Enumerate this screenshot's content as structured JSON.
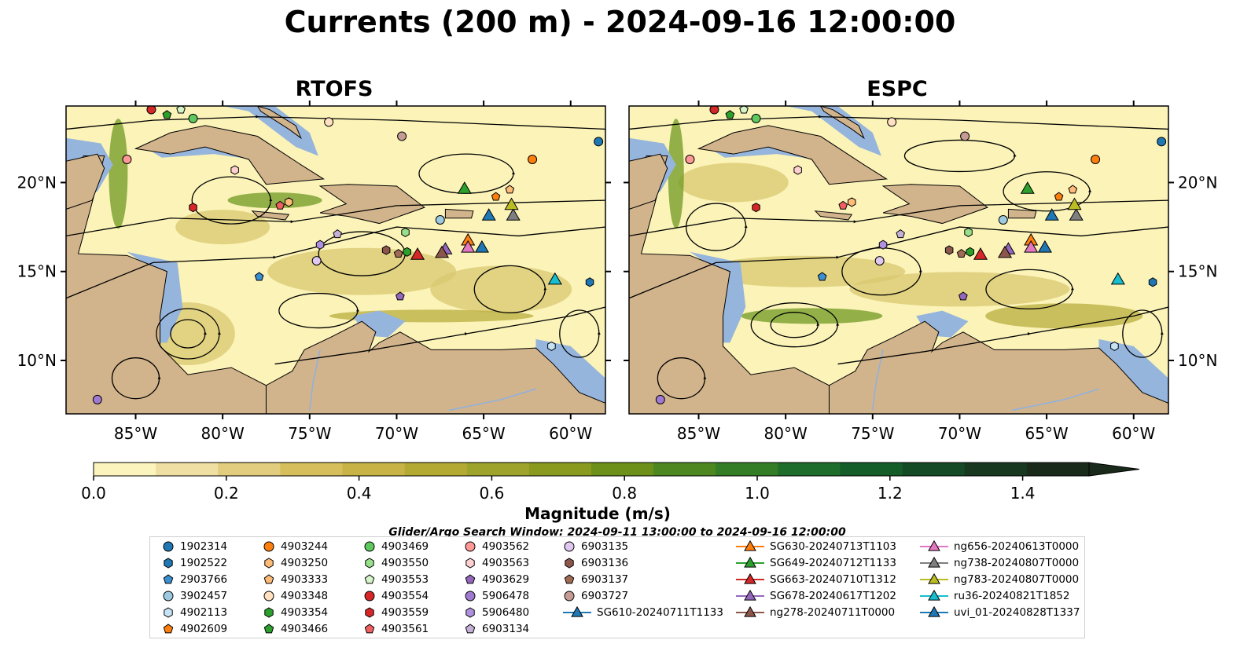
{
  "title": "Currents (200 m) - 2024-09-16 12:00:00",
  "panels": [
    {
      "title": "RTOFS"
    },
    {
      "title": "ESPC"
    }
  ],
  "axes": {
    "x_ticks": [
      "85°W",
      "80°W",
      "75°W",
      "70°W",
      "65°W",
      "60°W"
    ],
    "x_values": [
      -85,
      -80,
      -75,
      -70,
      -65,
      -60
    ],
    "y_ticks": [
      "20°N",
      "15°N",
      "10°N"
    ],
    "y_values": [
      20,
      15,
      10
    ],
    "lon_range": [
      -89,
      -58
    ],
    "lat_range": [
      7,
      24.3
    ]
  },
  "colorbar": {
    "label": "Magnitude (m/s)",
    "tick_labels": [
      "0.0",
      "0.2",
      "0.4",
      "0.6",
      "0.8",
      "1.0",
      "1.2",
      "1.4"
    ],
    "tick_values": [
      0.0,
      0.2,
      0.4,
      0.6,
      0.8,
      1.0,
      1.2,
      1.4
    ],
    "range": [
      0.0,
      1.5
    ],
    "extend": "max",
    "colors": [
      "#fbf5bd",
      "#efdfa2",
      "#e2cc7e",
      "#d6be5c",
      "#c8b446",
      "#b3aa33",
      "#9ea32b",
      "#8a9a1f",
      "#6c9019",
      "#4c8720",
      "#347d27",
      "#1f6d2a",
      "#145c28",
      "#154a26",
      "#18381f",
      "#1a2a1a"
    ]
  },
  "search_window": "Glider/Argo Search Window: 2024-09-11 13:00:00 to 2024-09-16 12:00:00",
  "legend": [
    {
      "label": "1902314",
      "marker": "circle",
      "color": "#1f77b4"
    },
    {
      "label": "1902522",
      "marker": "hexagon",
      "color": "#1f77b4"
    },
    {
      "label": "2903766",
      "marker": "pentagon",
      "color": "#3a8fd0"
    },
    {
      "label": "3902457",
      "marker": "circle",
      "color": "#9ecae1"
    },
    {
      "label": "4902113",
      "marker": "hexagon",
      "color": "#c6e3f5"
    },
    {
      "label": "4902609",
      "marker": "pentagon",
      "color": "#ff7f0e"
    },
    {
      "label": "4903244",
      "marker": "circle",
      "color": "#ff7f0e"
    },
    {
      "label": "4903250",
      "marker": "hexagon",
      "color": "#ffbb78"
    },
    {
      "label": "4903333",
      "marker": "pentagon",
      "color": "#ffbb78"
    },
    {
      "label": "4903348",
      "marker": "circle",
      "color": "#ffe0c0"
    },
    {
      "label": "4903354",
      "marker": "hexagon",
      "color": "#2ca02c"
    },
    {
      "label": "4903466",
      "marker": "pentagon",
      "color": "#2ca02c"
    },
    {
      "label": "4903469",
      "marker": "circle",
      "color": "#5fc85f"
    },
    {
      "label": "4903550",
      "marker": "hexagon",
      "color": "#98df8a"
    },
    {
      "label": "4903553",
      "marker": "pentagon",
      "color": "#d5f5c8"
    },
    {
      "label": "4903554",
      "marker": "circle",
      "color": "#d62728"
    },
    {
      "label": "4903559",
      "marker": "hexagon",
      "color": "#d62728"
    },
    {
      "label": "4903561",
      "marker": "pentagon",
      "color": "#f06060"
    },
    {
      "label": "4903562",
      "marker": "circle",
      "color": "#ff9896"
    },
    {
      "label": "4903563",
      "marker": "hexagon",
      "color": "#ffd0d0"
    },
    {
      "label": "4903629",
      "marker": "pentagon",
      "color": "#9467bd"
    },
    {
      "label": "5906478",
      "marker": "circle",
      "color": "#a07ad0"
    },
    {
      "label": "5906480",
      "marker": "hexagon",
      "color": "#b090e0"
    },
    {
      "label": "6903134",
      "marker": "pentagon",
      "color": "#c5b0d5"
    },
    {
      "label": "6903135",
      "marker": "circle",
      "color": "#e0c8f0"
    },
    {
      "label": "6903136",
      "marker": "hexagon",
      "color": "#8c564b"
    },
    {
      "label": "6903137",
      "marker": "pentagon",
      "color": "#a06a55"
    },
    {
      "label": "6903727",
      "marker": "circle",
      "color": "#c49c94"
    },
    {
      "label": "SG610-20240711T1133",
      "marker": "triangle",
      "color": "#1f77b4"
    },
    {
      "label": "SG630-20240713T1103",
      "marker": "triangle",
      "color": "#ff7f0e"
    },
    {
      "label": "SG649-20240712T1133",
      "marker": "triangle",
      "color": "#2ca02c"
    },
    {
      "label": "SG663-20240710T1312",
      "marker": "triangle",
      "color": "#d62728"
    },
    {
      "label": "SG678-20240617T1202",
      "marker": "triangle",
      "color": "#9467bd"
    },
    {
      "label": "ng278-20240711T0000",
      "marker": "triangle",
      "color": "#8c564b"
    },
    {
      "label": "ng656-20240613T0000",
      "marker": "triangle",
      "color": "#e377c2"
    },
    {
      "label": "ng738-20240807T0000",
      "marker": "triangle",
      "color": "#7f7f7f"
    },
    {
      "label": "ng783-20240807T0000",
      "marker": "triangle",
      "color": "#bcbd22"
    },
    {
      "label": "ru36-20240821T1852",
      "marker": "triangle",
      "color": "#17becf"
    },
    {
      "label": "uvi_01-20240828T1337",
      "marker": "triangle",
      "color": "#1f77b4"
    }
  ],
  "map_colors": {
    "land": "#d2b48c",
    "shelf_water": "#96b5dd",
    "ocean_low": "#fbf3b8",
    "ocean_mid": "#d9c870",
    "ocean_high": "#6f9a22",
    "streamline": "#000000",
    "rivers": "#8fb0e0"
  }
}
